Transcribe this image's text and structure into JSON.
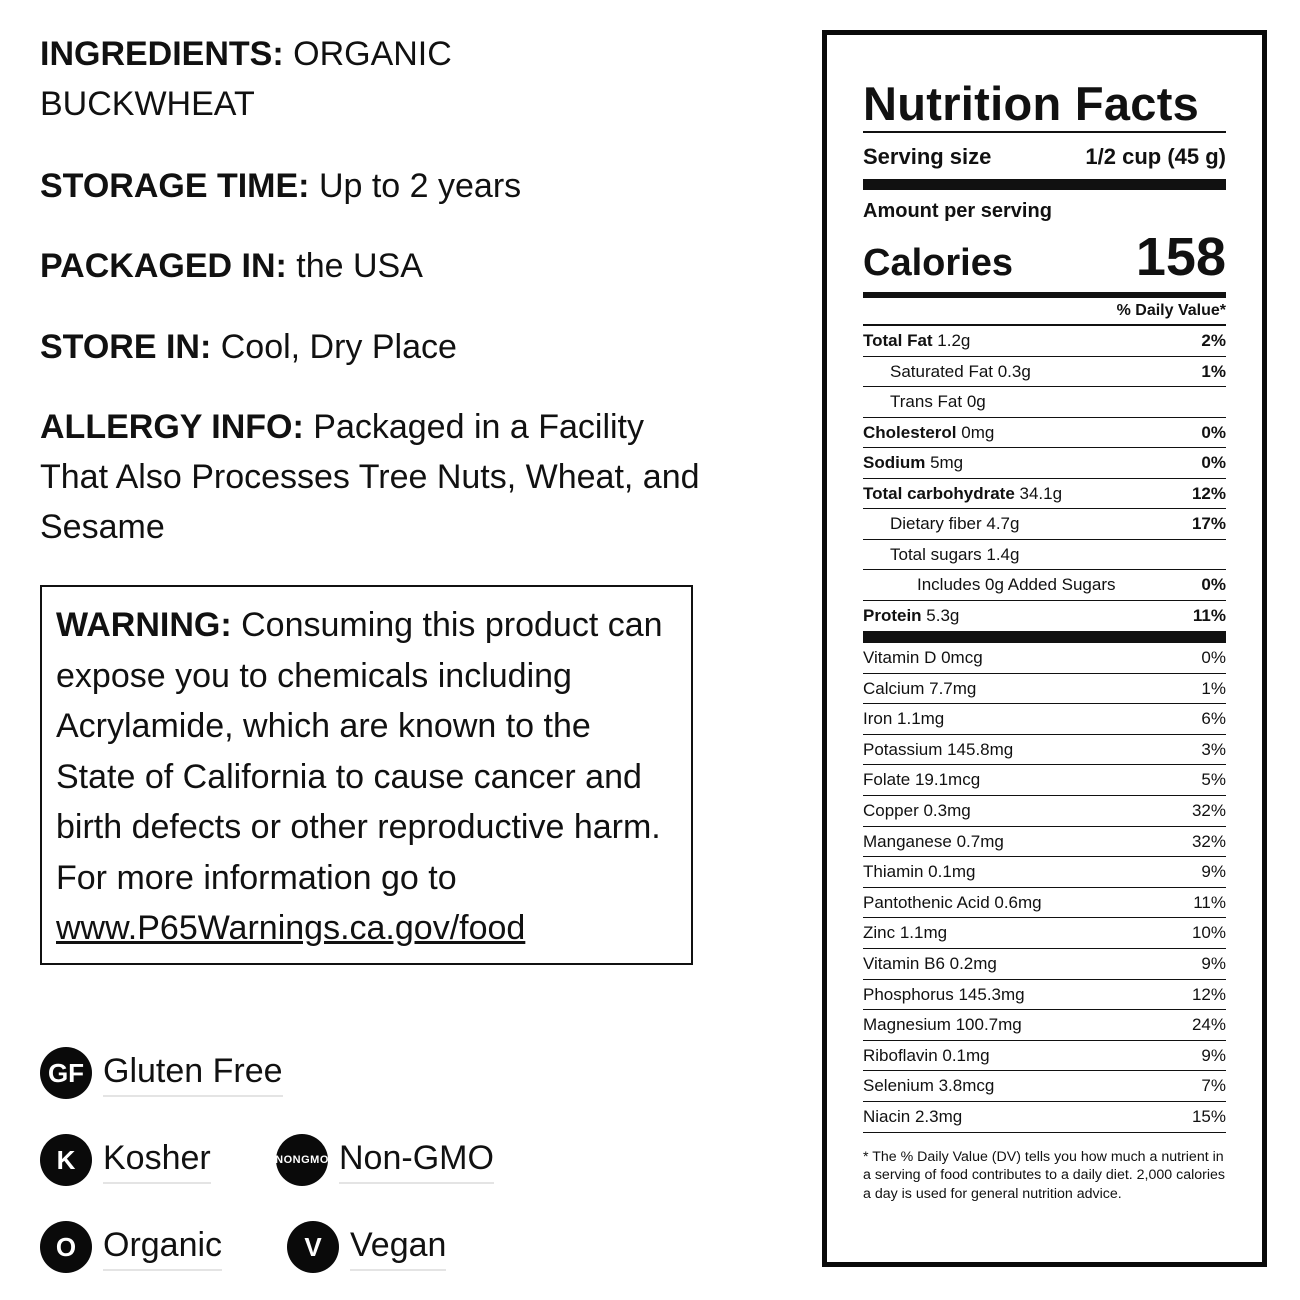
{
  "info": {
    "ingredients": {
      "label": "INGREDIENTS:",
      "value": " ORGANIC BUCKWHEAT"
    },
    "storage": {
      "label": "STORAGE TIME:",
      "value": " Up to 2 years"
    },
    "packaged": {
      "label": "PACKAGED IN:",
      "value": " the USA"
    },
    "store_in": {
      "label": "STORE IN:",
      "value": " Cool, Dry Place"
    },
    "allergy": {
      "label": "ALLERGY INFO:",
      "value": " Packaged in a Facility That Also Processes Tree Nuts, Wheat, and Sesame"
    }
  },
  "warning": {
    "label": "WARNING:",
    "text": " Consuming this product can expose you to chemicals including Acrylamide, which are known to the State of California to cause cancer and birth defects or other reproductive harm. For more information go to ",
    "link": "www.P65Warnings.ca.gov/food"
  },
  "badges": {
    "gluten_free": {
      "icon": "gf-icon",
      "mark": "GF",
      "label": "Gluten Free"
    },
    "kosher": {
      "icon": "kosher-icon",
      "mark": "K",
      "label": "Kosher"
    },
    "non_gmo": {
      "icon": "non-gmo-icon",
      "mark_top": "NON",
      "mark_bottom": "GMO",
      "label": "Non-GMO"
    },
    "organic": {
      "icon": "organic-icon",
      "mark": "O",
      "label": "Organic"
    },
    "vegan": {
      "icon": "vegan-icon",
      "mark": "V",
      "label": "Vegan"
    }
  },
  "nutrition": {
    "title": "Nutrition Facts",
    "serving_label": "Serving size",
    "serving_value": "1/2 cup (45 g)",
    "amount_per_serving": "Amount per serving",
    "calories_label": "Calories",
    "calories_value": "158",
    "dv_header": "% Daily Value*",
    "main_rows": [
      {
        "name": "Total Fat",
        "amount": " 1.2g",
        "dv": "2%"
      },
      {
        "name": "Saturated Fat 0.3g",
        "amount": "",
        "dv": "1%"
      },
      {
        "name": "Trans Fat 0g",
        "amount": "",
        "dv": ""
      },
      {
        "name": "Cholesterol",
        "amount": " 0mg",
        "dv": "0%"
      },
      {
        "name": "Sodium",
        "amount": " 5mg",
        "dv": "0%"
      },
      {
        "name": "Total carbohydrate",
        "amount": " 34.1g",
        "dv": "12%"
      },
      {
        "name": "Dietary fiber 4.7g",
        "amount": "",
        "dv": "17%"
      },
      {
        "name": "Total sugars 1.4g",
        "amount": "",
        "dv": ""
      },
      {
        "name": "Includes 0g Added Sugars",
        "amount": "",
        "dv": "0%"
      },
      {
        "name": "Protein",
        "amount": " 5.3g",
        "dv": "11%"
      }
    ],
    "vitamins": [
      {
        "name": "Vitamin D 0mcg",
        "dv": "0%"
      },
      {
        "name": "Calcium 7.7mg",
        "dv": "1%"
      },
      {
        "name": "Iron 1.1mg",
        "dv": "6%"
      },
      {
        "name": "Potassium 145.8mg",
        "dv": "3%"
      },
      {
        "name": "Folate 19.1mcg",
        "dv": "5%"
      },
      {
        "name": "Copper 0.3mg",
        "dv": "32%"
      },
      {
        "name": "Manganese 0.7mg",
        "dv": "32%"
      },
      {
        "name": "Thiamin 0.1mg",
        "dv": "9%"
      },
      {
        "name": "Pantothenic Acid 0.6mg",
        "dv": "11%"
      },
      {
        "name": "Zinc 1.1mg",
        "dv": "10%"
      },
      {
        "name": "Vitamin B6 0.2mg",
        "dv": "9%"
      },
      {
        "name": "Phosphorus 145.3mg",
        "dv": "12%"
      },
      {
        "name": "Magnesium 100.7mg",
        "dv": "24%"
      },
      {
        "name": "Riboflavin 0.1mg",
        "dv": "9%"
      },
      {
        "name": "Selenium 3.8mcg",
        "dv": "7%"
      },
      {
        "name": "Niacin 2.3mg",
        "dv": "15%"
      }
    ],
    "footnote": "* The % Daily Value (DV) tells you how much a nutrient in a serving of food contributes to a daily diet. 2,000 calories a day is used for general nutrition advice."
  }
}
